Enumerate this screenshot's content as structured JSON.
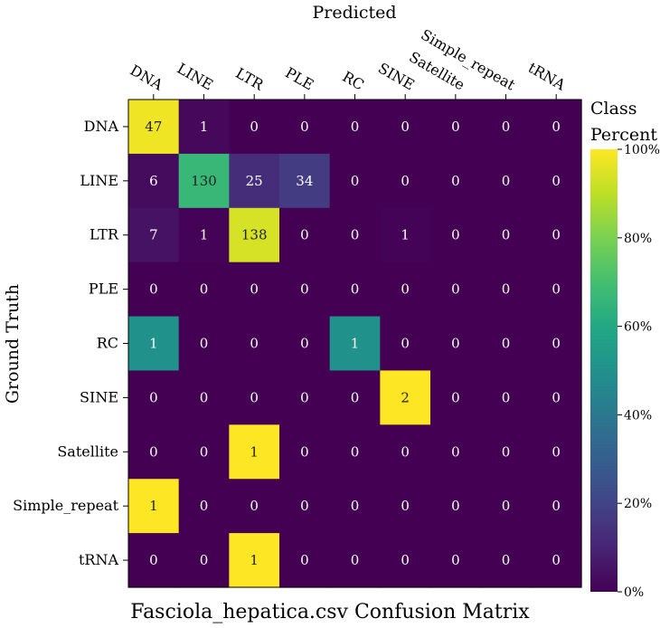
{
  "chart_data": {
    "type": "heatmap",
    "title": "Fasciola_hepatica.csv Confusion Matrix",
    "xlabel": "Predicted",
    "ylabel": "Ground Truth",
    "x_categories": [
      "DNA",
      "LINE",
      "LTR",
      "PLE",
      "RC",
      "SINE",
      "Satellite",
      "Simple_repeat",
      "tRNA"
    ],
    "y_categories": [
      "DNA",
      "LINE",
      "LTR",
      "PLE",
      "RC",
      "SINE",
      "Satellite",
      "Simple_repeat",
      "tRNA"
    ],
    "values": [
      [
        47,
        1,
        0,
        0,
        0,
        0,
        0,
        0,
        0
      ],
      [
        6,
        130,
        25,
        34,
        0,
        0,
        0,
        0,
        0
      ],
      [
        7,
        1,
        138,
        0,
        0,
        1,
        0,
        0,
        0
      ],
      [
        0,
        0,
        0,
        0,
        0,
        0,
        0,
        0,
        0
      ],
      [
        1,
        0,
        0,
        0,
        1,
        0,
        0,
        0,
        0
      ],
      [
        0,
        0,
        0,
        0,
        0,
        2,
        0,
        0,
        0
      ],
      [
        0,
        0,
        1,
        0,
        0,
        0,
        0,
        0,
        0
      ],
      [
        1,
        0,
        0,
        0,
        0,
        0,
        0,
        0,
        0
      ],
      [
        0,
        0,
        1,
        0,
        0,
        0,
        0,
        0,
        0
      ]
    ],
    "color_scale": "viridis, normalized by row (percent of ground truth class)",
    "colorbar": {
      "label_line1": "Class",
      "label_line2": "Percent",
      "ticks": [
        "0%",
        "20%",
        "40%",
        "60%",
        "80%",
        "100%"
      ],
      "range": [
        0,
        100
      ]
    },
    "grid": false,
    "legend": "right"
  }
}
